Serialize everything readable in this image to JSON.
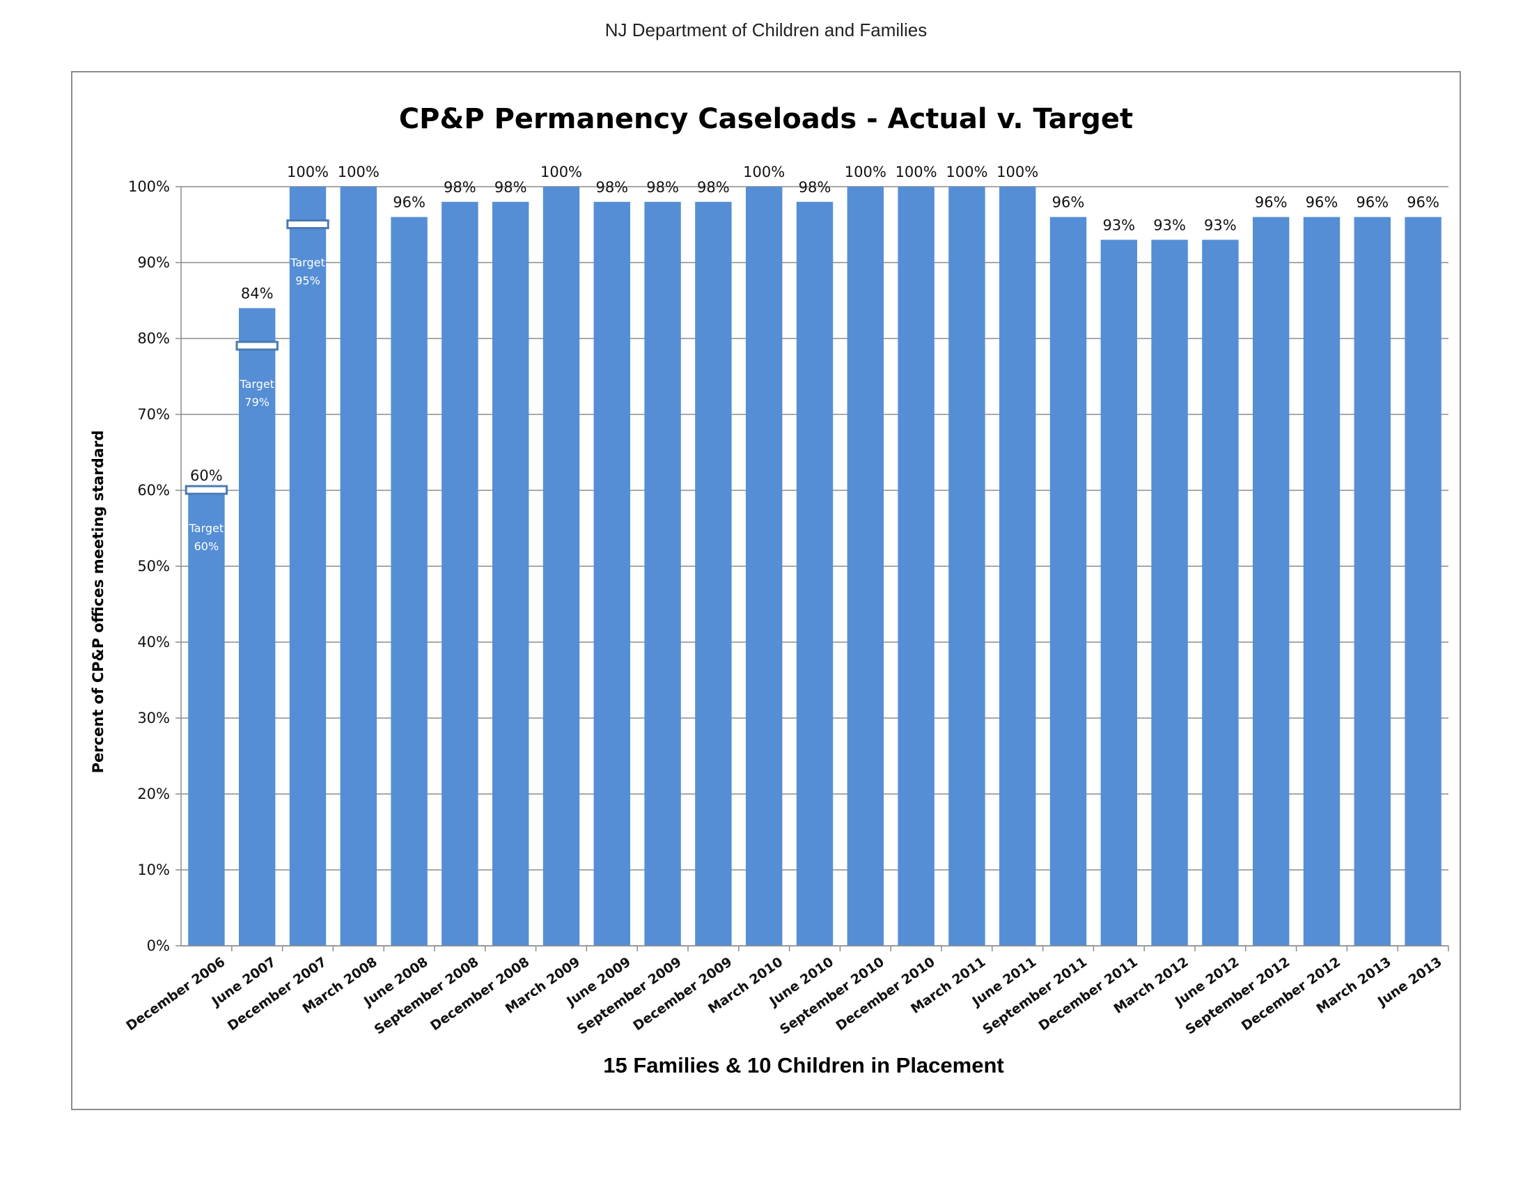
{
  "header": {
    "org_name": "NJ Department of Children and Families"
  },
  "chart_data": {
    "type": "bar",
    "title": "CP&P Permanency Caseloads - Actual v. Target",
    "xlabel": "15 Families & 10 Children in Placement",
    "ylabel": "Percent of CP&P offices meeting stardard",
    "ylim": [
      0,
      100
    ],
    "yticks": [
      "0%",
      "10%",
      "20%",
      "30%",
      "40%",
      "50%",
      "60%",
      "70%",
      "80%",
      "90%",
      "100%"
    ],
    "grid": true,
    "colors": {
      "bar": "#558ed5",
      "target_fill": "#ffffff",
      "target_border": "#4a7ab5",
      "grid": "#8c8c8c"
    },
    "categories": [
      "December 2006",
      "June 2007",
      "December 2007",
      "March 2008",
      "June 2008",
      "September 2008",
      "December 2008",
      "March  2009",
      "June 2009",
      "September 2009",
      "December 2009",
      "March 2010",
      "June 2010",
      "September 2010",
      "December 2010",
      "March 2011",
      "June 2011",
      "September 2011",
      "December 2011",
      "March 2012",
      "June 2012",
      "September 2012",
      "December 2012",
      "March 2013",
      "June 2013"
    ],
    "values": [
      60,
      84,
      100,
      100,
      96,
      98,
      98,
      100,
      98,
      98,
      98,
      100,
      98,
      100,
      100,
      100,
      100,
      96,
      93,
      93,
      93,
      96,
      96,
      96,
      96
    ],
    "value_labels": [
      "60%",
      "84%",
      "100%",
      "100%",
      "96%",
      "98%",
      "98%",
      "100%",
      "98%",
      "98%",
      "98%",
      "100%",
      "98%",
      "100%",
      "100%",
      "100%",
      "100%",
      "96%",
      "93%",
      "93%",
      "93%",
      "96%",
      "96%",
      "96%",
      "96%"
    ],
    "targets": [
      {
        "category": "December 2006",
        "value": 60,
        "label": "Target",
        "value_label": "60%"
      },
      {
        "category": "June 2007",
        "value": 79,
        "label": "Target",
        "value_label": "79%"
      },
      {
        "category": "December 2007",
        "value": 95,
        "label": "Target",
        "value_label": "95%"
      }
    ]
  }
}
